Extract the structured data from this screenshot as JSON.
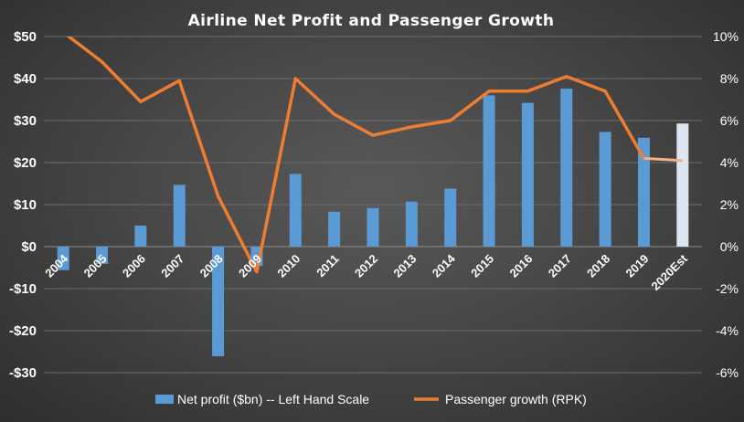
{
  "chart_data": {
    "type": "bar",
    "title": "Airline  Net Profit  and  Passenger  Growth",
    "categories": [
      "2004",
      "2005",
      "2006",
      "2007",
      "2008",
      "2009",
      "2010",
      "2011",
      "2012",
      "2013",
      "2014",
      "2015",
      "2016",
      "2017",
      "2018",
      "2019",
      "2020Est"
    ],
    "series": [
      {
        "name": "Net profit  ($bn) -- Left Hand Scale",
        "type": "bar",
        "axis": "left",
        "color": "#5b9bd5",
        "highlight_color": "#dbe6f2",
        "values": [
          -5.6,
          -4.1,
          5.0,
          14.7,
          -26.1,
          -4.6,
          17.3,
          8.3,
          9.2,
          10.7,
          13.8,
          36.0,
          34.2,
          37.6,
          27.3,
          25.9,
          29.3
        ]
      },
      {
        "name": "Passenger growth (RPK)",
        "type": "line",
        "axis": "right",
        "color": "#ed7d31",
        "values": [
          10.2,
          8.8,
          6.9,
          7.9,
          2.4,
          -1.2,
          8.0,
          6.3,
          5.3,
          5.7,
          6.0,
          7.4,
          7.4,
          8.1,
          7.4,
          4.2,
          4.1
        ]
      }
    ],
    "left_axis": {
      "ylim": [
        -30,
        50
      ],
      "ticks": [
        50,
        40,
        30,
        20,
        10,
        0,
        -10,
        -20,
        -30
      ],
      "tick_labels": [
        "$50",
        "$40",
        "$30",
        "$20",
        "$10",
        "$0",
        "-$10",
        "-$20",
        "-$30"
      ]
    },
    "right_axis": {
      "ylim": [
        -6,
        10
      ],
      "ticks": [
        10,
        8,
        6,
        4,
        2,
        0,
        -2,
        -4,
        -6
      ],
      "tick_labels": [
        "10%",
        "8%",
        "6%",
        "4%",
        "2%",
        "0%",
        "-2%",
        "-4%",
        "-6%"
      ]
    },
    "grid": true,
    "legend_position": "bottom"
  }
}
